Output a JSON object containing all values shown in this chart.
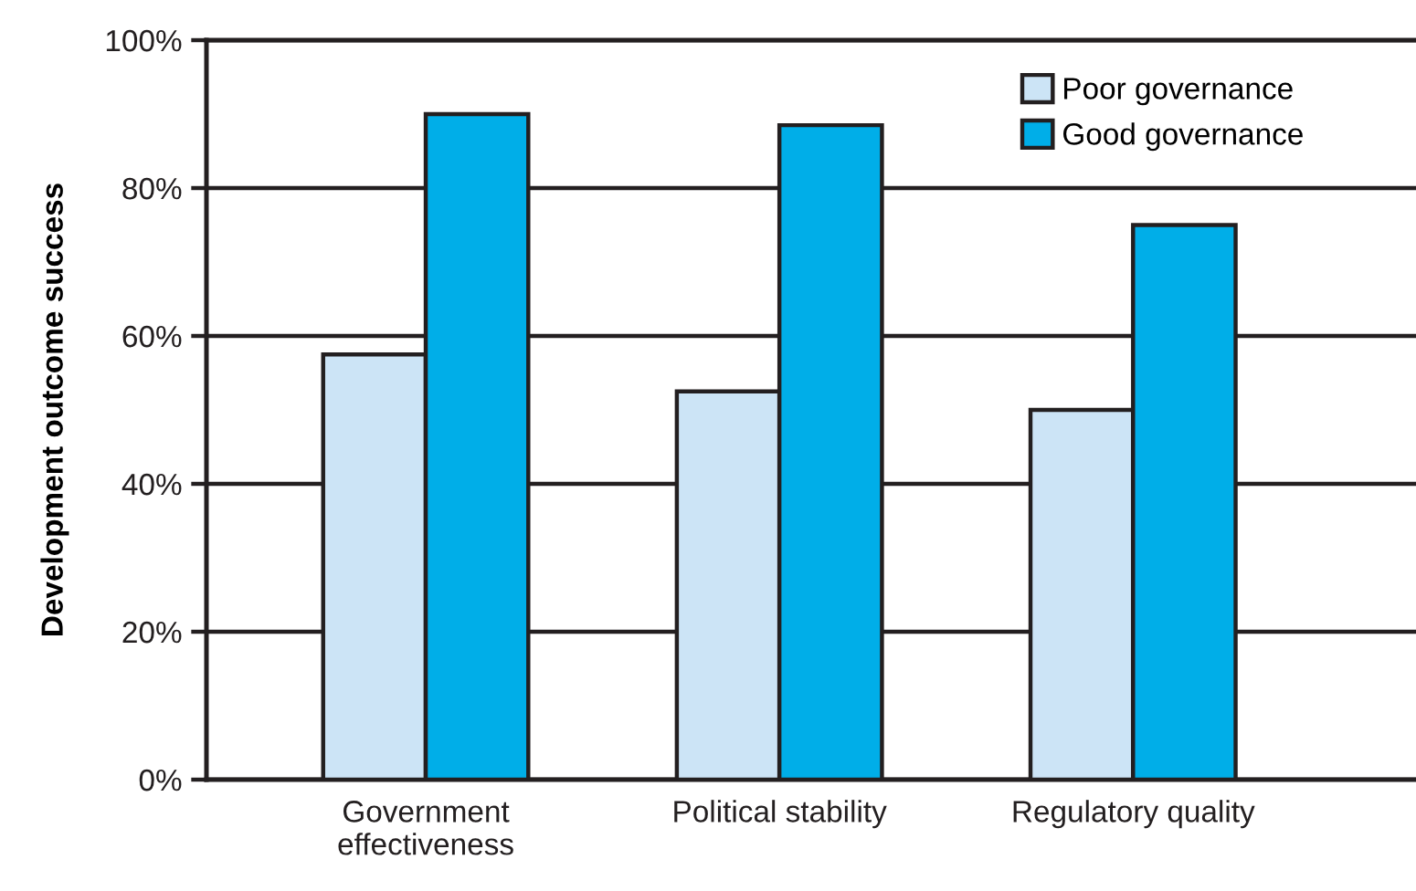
{
  "chart_data": {
    "type": "bar",
    "ylabel": "Development outcome success",
    "categories": [
      "Government\neffectiveness",
      "Political stability",
      "Regulatory quality"
    ],
    "series": [
      {
        "name": "Poor governance",
        "color": "#cce4f6",
        "values": [
          57.5,
          52.5,
          50
        ]
      },
      {
        "name": "Good governance",
        "color": "#00aee8",
        "values": [
          90,
          88.5,
          75
        ]
      }
    ],
    "ylim": [
      0,
      100
    ],
    "yticks": [
      {
        "value": 0,
        "label": "0%"
      },
      {
        "value": 20,
        "label": "20%"
      },
      {
        "value": 40,
        "label": "40%"
      },
      {
        "value": 60,
        "label": "60%"
      },
      {
        "value": 80,
        "label": "80%"
      },
      {
        "value": 100,
        "label": "100%"
      }
    ],
    "grid": "y",
    "legend": "top right"
  }
}
